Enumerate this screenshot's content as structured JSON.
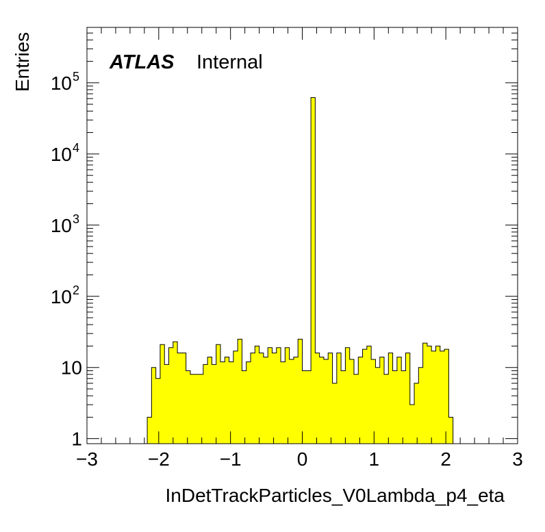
{
  "chart_data": {
    "type": "bar",
    "title": "",
    "xlabel": "InDetTrackParticles_V0Lambda_p4_eta",
    "ylabel": "Entries",
    "xlim": [
      -3,
      3
    ],
    "ylim": [
      0.85,
      600000
    ],
    "yscale": "log",
    "grid": false,
    "bin_width": 0.06,
    "bin_start": -2.16,
    "fill_color": "#ffff00",
    "line_color": "#000000",
    "x_ticks": [
      "−3",
      "−2",
      "−1",
      "0",
      "1",
      "2",
      "3"
    ],
    "y_ticks": [
      {
        "value": 1,
        "base": "1",
        "exp": ""
      },
      {
        "value": 10,
        "base": "10",
        "exp": ""
      },
      {
        "value": 100,
        "base": "10",
        "exp": "2"
      },
      {
        "value": 1000,
        "base": "10",
        "exp": "3"
      },
      {
        "value": 10000,
        "base": "10",
        "exp": "4"
      },
      {
        "value": 100000,
        "base": "10",
        "exp": "5"
      }
    ],
    "values": [
      2,
      10,
      7,
      21,
      11,
      19,
      23,
      16,
      16,
      9,
      8,
      8,
      8,
      11,
      14,
      11,
      21,
      12,
      14,
      12,
      17,
      25,
      9,
      12,
      16,
      20,
      16,
      14,
      19,
      16,
      19,
      12,
      19,
      13,
      14,
      25,
      9,
      9,
      62000,
      16,
      14,
      13,
      16,
      6,
      16,
      9,
      19,
      13,
      8,
      14,
      18,
      20,
      13,
      10,
      14,
      8,
      16,
      9,
      14,
      9,
      16,
      3,
      6,
      10,
      22,
      20,
      17,
      20,
      17,
      18,
      2
    ]
  },
  "annotation": {
    "brand": "ATLAS",
    "label": "Internal"
  }
}
